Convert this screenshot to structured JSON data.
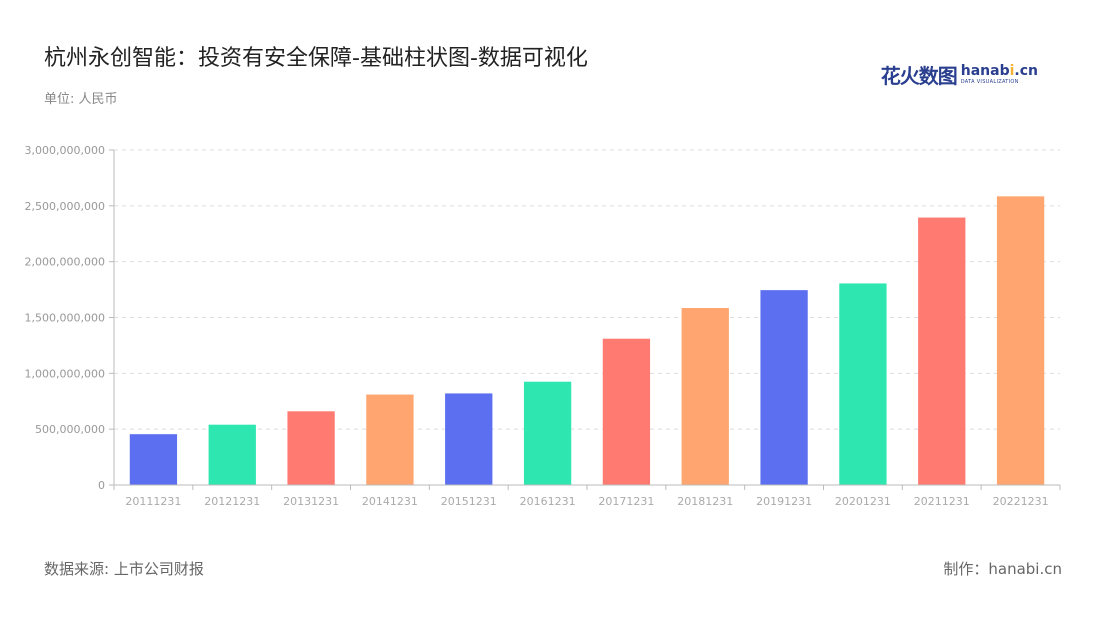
{
  "header": {
    "title": "杭州永创智能：投资有安全保障-基础柱状图-数据可视化",
    "unit": "单位: 人民币"
  },
  "logo": {
    "cn": "花火数图",
    "en_main_prefix": "hanab",
    "en_main_dot": "i",
    "en_main_suffix": ".cn",
    "en_sub": "DATA VISUALIZATION"
  },
  "footer": {
    "source": "数据来源: 上市公司财报",
    "maker": "制作：hanabi.cn"
  },
  "chart_data": {
    "type": "bar",
    "title": "杭州永创智能：投资有安全保障-基础柱状图-数据可视化",
    "xlabel": "",
    "ylabel": "",
    "ylim": [
      0,
      3000000000
    ],
    "yticks": [
      0,
      500000000,
      1000000000,
      1500000000,
      2000000000,
      2500000000,
      3000000000
    ],
    "ytick_labels": [
      "0",
      "500,000,000",
      "1,000,000,000",
      "1,500,000,000",
      "2,000,000,000",
      "2,500,000,000",
      "3,000,000,000"
    ],
    "categories": [
      "20111231",
      "20121231",
      "20131231",
      "20141231",
      "20151231",
      "20161231",
      "20171231",
      "20181231",
      "20191231",
      "20201231",
      "20211231",
      "20221231"
    ],
    "values": [
      455000000,
      540000000,
      660000000,
      810000000,
      820000000,
      925000000,
      1310000000,
      1585000000,
      1745000000,
      1805000000,
      2395000000,
      2585000000
    ],
    "colors": [
      "#5b6ff0",
      "#2ee6b0",
      "#ff7b72",
      "#ffa56f",
      "#5b6ff0",
      "#2ee6b0",
      "#ff7b72",
      "#ffa56f",
      "#5b6ff0",
      "#2ee6b0",
      "#ff7b72",
      "#ffa56f"
    ],
    "grid": true,
    "legend": "none"
  }
}
